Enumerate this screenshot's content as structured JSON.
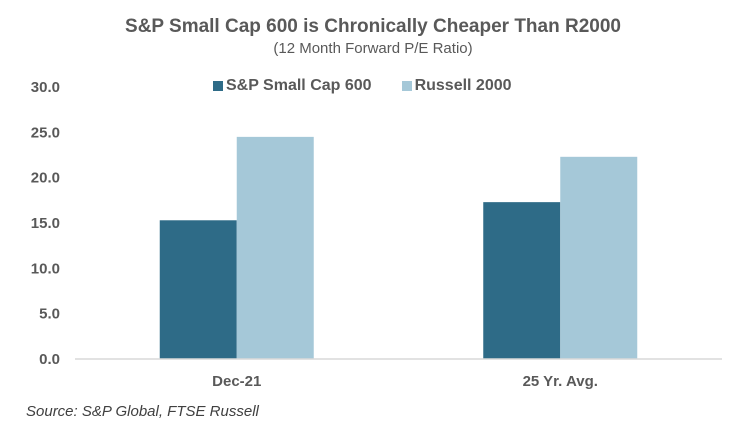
{
  "chart_data": {
    "type": "bar",
    "title": "S&P Small Cap 600 is Chronically Cheaper Than R2000",
    "subtitle": "(12 Month Forward P/E Ratio)",
    "xlabel": "",
    "ylabel": "",
    "categories": [
      "Dec-21",
      "25 Yr. Avg."
    ],
    "series": [
      {
        "name": "S&P Small Cap 600",
        "color": "#2E6B87",
        "values": [
          15.3,
          17.3
        ]
      },
      {
        "name": "Russell 2000",
        "color": "#A5C8D8",
        "values": [
          24.5,
          22.3
        ]
      }
    ],
    "ylim": [
      0,
      30
    ],
    "yticks": [
      "0.0",
      "5.0",
      "10.0",
      "15.0",
      "20.0",
      "25.0",
      "30.0"
    ],
    "ytick_values": [
      0,
      5,
      10,
      15,
      20,
      25,
      30
    ],
    "grid": false,
    "legend_position": "top-center",
    "source": "Source: S&P Global, FTSE Russell"
  }
}
